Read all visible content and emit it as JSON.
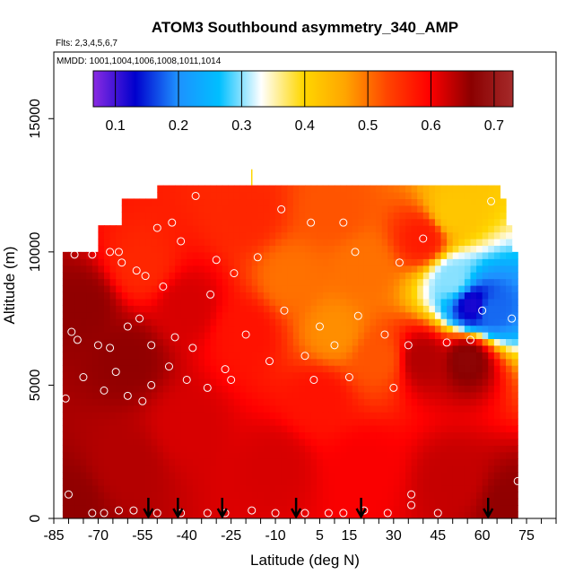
{
  "chart_data": {
    "type": "heatmap",
    "title": "ATOM3 Southbound asymmetry_340_AMP",
    "flights_label": "Flts: 2,3,4,5,6,7",
    "dates_label": "MMDD: 1001,1004,1006,1008,1011,1014",
    "xlabel": "Latitude (deg N)",
    "ylabel": "Altitude (m)",
    "xlim": [
      -85,
      85
    ],
    "ylim": [
      0,
      17500
    ],
    "x_tick_labels": [
      "-85",
      "-70",
      "-55",
      "-40",
      "-25",
      "-10",
      "5",
      "15",
      "30",
      "45",
      "60",
      "75"
    ],
    "x_tick_values": [
      -85,
      -70,
      -55,
      -40,
      -25,
      -10,
      5,
      15,
      30,
      45,
      60,
      75
    ],
    "x_minor_step": 5,
    "y_tick_labels": [
      "0",
      "5000",
      "10000",
      "15000"
    ],
    "y_tick_values": [
      0,
      5000,
      10000,
      15000
    ],
    "colorbar": {
      "range": [
        0.065,
        0.73
      ],
      "tick_labels": [
        "0.1",
        "0.2",
        "0.3",
        "0.4",
        "0.5",
        "0.6",
        "0.7"
      ],
      "tick_values": [
        0.1,
        0.2,
        0.3,
        0.4,
        0.5,
        0.6,
        0.7
      ],
      "colors": [
        "#8a2be2",
        "#0000cd",
        "#1e90ff",
        "#00bfff",
        "#ffffff",
        "#ffd700",
        "#ffa500",
        "#ff4500",
        "#ff0000",
        "#8b0000",
        "#a52a2a"
      ]
    },
    "field_regions": [
      {
        "lat_min": -82,
        "lat_max": 72,
        "alt_min": 0,
        "alt_max": 10000
      },
      {
        "lat_min": -70,
        "lat_max": 70,
        "alt_min": 10000,
        "alt_max": 11000
      },
      {
        "lat_min": -62,
        "lat_max": 68,
        "alt_min": 11000,
        "alt_max": 12000
      },
      {
        "lat_min": -50,
        "lat_max": 66,
        "alt_min": 12000,
        "alt_max": 12500
      }
    ],
    "value_field": [
      {
        "lat": -80,
        "alt": 500,
        "value": 0.66
      },
      {
        "lat": -60,
        "alt": 2000,
        "value": 0.64
      },
      {
        "lat": -40,
        "alt": 3500,
        "value": 0.62
      },
      {
        "lat": -10,
        "alt": 2000,
        "value": 0.62
      },
      {
        "lat": 20,
        "alt": 2000,
        "value": 0.6
      },
      {
        "lat": 50,
        "alt": 1500,
        "value": 0.63
      },
      {
        "lat": 70,
        "alt": 500,
        "value": 0.66
      },
      {
        "lat": -75,
        "alt": 8000,
        "value": 0.66
      },
      {
        "lat": -55,
        "alt": 9500,
        "value": 0.56
      },
      {
        "lat": -40,
        "alt": 8000,
        "value": 0.62
      },
      {
        "lat": -20,
        "alt": 7000,
        "value": 0.58
      },
      {
        "lat": -5,
        "alt": 9000,
        "value": 0.5
      },
      {
        "lat": 10,
        "alt": 7000,
        "value": 0.48
      },
      {
        "lat": 20,
        "alt": 9500,
        "value": 0.5
      },
      {
        "lat": 25,
        "alt": 6000,
        "value": 0.52
      },
      {
        "lat": 40,
        "alt": 10500,
        "value": 0.57
      },
      {
        "lat": 50,
        "alt": 11500,
        "value": 0.42
      },
      {
        "lat": 50,
        "alt": 9000,
        "value": 0.3
      },
      {
        "lat": 57,
        "alt": 8000,
        "value": 0.12
      },
      {
        "lat": 63,
        "alt": 7800,
        "value": 0.18
      },
      {
        "lat": 55,
        "alt": 6000,
        "value": 0.67
      },
      {
        "lat": 40,
        "alt": 6000,
        "value": 0.64
      },
      {
        "lat": -20,
        "alt": 11500,
        "value": 0.56
      },
      {
        "lat": 10,
        "alt": 11500,
        "value": 0.52
      },
      {
        "lat": -60,
        "alt": 6000,
        "value": 0.66
      },
      {
        "lat": 5,
        "alt": 4500,
        "value": 0.58
      }
    ],
    "sample_points": [
      {
        "lat": -78,
        "alt": 9900
      },
      {
        "lat": -72,
        "alt": 9900
      },
      {
        "lat": -66,
        "alt": 10000
      },
      {
        "lat": -63,
        "alt": 10000
      },
      {
        "lat": -62,
        "alt": 9600
      },
      {
        "lat": -57,
        "alt": 9300
      },
      {
        "lat": -54,
        "alt": 9100
      },
      {
        "lat": -50,
        "alt": 10900
      },
      {
        "lat": -45,
        "alt": 11100
      },
      {
        "lat": -42,
        "alt": 10400
      },
      {
        "lat": -37,
        "alt": 12100
      },
      {
        "lat": -30,
        "alt": 9700
      },
      {
        "lat": -24,
        "alt": 9200
      },
      {
        "lat": -16,
        "alt": 9800
      },
      {
        "lat": -8,
        "alt": 11600
      },
      {
        "lat": 2,
        "alt": 11100
      },
      {
        "lat": 13,
        "alt": 11100
      },
      {
        "lat": 17,
        "alt": 10000
      },
      {
        "lat": 32,
        "alt": 9600
      },
      {
        "lat": 40,
        "alt": 10500
      },
      {
        "lat": 63,
        "alt": 11900
      },
      {
        "lat": -79,
        "alt": 7000
      },
      {
        "lat": -77,
        "alt": 6700
      },
      {
        "lat": -70,
        "alt": 6500
      },
      {
        "lat": -66,
        "alt": 6400
      },
      {
        "lat": -60,
        "alt": 7200
      },
      {
        "lat": -56,
        "alt": 7500
      },
      {
        "lat": -52,
        "alt": 6500
      },
      {
        "lat": -48,
        "alt": 8700
      },
      {
        "lat": -44,
        "alt": 6800
      },
      {
        "lat": -38,
        "alt": 6400
      },
      {
        "lat": -32,
        "alt": 8400
      },
      {
        "lat": -27,
        "alt": 5600
      },
      {
        "lat": -20,
        "alt": 6900
      },
      {
        "lat": -7,
        "alt": 7800
      },
      {
        "lat": 0,
        "alt": 6100
      },
      {
        "lat": 5,
        "alt": 7200
      },
      {
        "lat": 10,
        "alt": 6500
      },
      {
        "lat": 18,
        "alt": 7600
      },
      {
        "lat": 27,
        "alt": 6900
      },
      {
        "lat": 35,
        "alt": 6500
      },
      {
        "lat": 48,
        "alt": 6600
      },
      {
        "lat": 56,
        "alt": 6700
      },
      {
        "lat": -75,
        "alt": 5300
      },
      {
        "lat": -68,
        "alt": 4800
      },
      {
        "lat": -60,
        "alt": 4600
      },
      {
        "lat": -52,
        "alt": 5000
      },
      {
        "lat": -46,
        "alt": 5700
      },
      {
        "lat": -40,
        "alt": 5200
      },
      {
        "lat": -33,
        "alt": 4900
      },
      {
        "lat": -25,
        "alt": 5200
      },
      {
        "lat": -12,
        "alt": 5900
      },
      {
        "lat": 3,
        "alt": 5200
      },
      {
        "lat": 15,
        "alt": 5300
      },
      {
        "lat": 30,
        "alt": 4900
      },
      {
        "lat": -81,
        "alt": 4500
      },
      {
        "lat": -64,
        "alt": 5500
      },
      {
        "lat": -55,
        "alt": 4400
      },
      {
        "lat": -80,
        "alt": 900
      },
      {
        "lat": -72,
        "alt": 200
      },
      {
        "lat": -68,
        "alt": 200
      },
      {
        "lat": -63,
        "alt": 300
      },
      {
        "lat": -58,
        "alt": 300
      },
      {
        "lat": -50,
        "alt": 200
      },
      {
        "lat": -42,
        "alt": 200
      },
      {
        "lat": -33,
        "alt": 200
      },
      {
        "lat": -27,
        "alt": 200
      },
      {
        "lat": -18,
        "alt": 300
      },
      {
        "lat": -10,
        "alt": 200
      },
      {
        "lat": 0,
        "alt": 200
      },
      {
        "lat": 8,
        "alt": 200
      },
      {
        "lat": 13,
        "alt": 200
      },
      {
        "lat": 20,
        "alt": 300
      },
      {
        "lat": 28,
        "alt": 200
      },
      {
        "lat": 36,
        "alt": 900
      },
      {
        "lat": 36,
        "alt": 500
      },
      {
        "lat": 45,
        "alt": 200
      },
      {
        "lat": 72,
        "alt": 1400
      },
      {
        "lat": 70,
        "alt": 7500
      },
      {
        "lat": 60,
        "alt": 7800
      }
    ],
    "arrow_latitudes": [
      -53,
      -43,
      -28,
      -3,
      19,
      62
    ],
    "marker_at_top": {
      "lat": -18,
      "alt": 12500
    }
  }
}
